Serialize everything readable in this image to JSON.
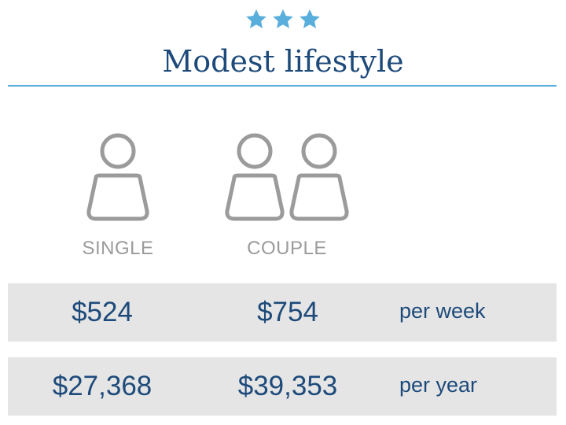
{
  "header": {
    "rating_icon": "star-icon",
    "rating_count": 3,
    "star_color": "#5aaedc",
    "title": "Modest lifestyle"
  },
  "columns": [
    {
      "icon": "single-person-icon",
      "label": "SINGLE"
    },
    {
      "icon": "couple-icon",
      "label": "COUPLE"
    }
  ],
  "rows": [
    {
      "single": "$524",
      "couple": "$754",
      "period": "per week"
    },
    {
      "single": "$27,368",
      "couple": "$39,353",
      "period": "per year"
    }
  ],
  "colors": {
    "text": "#1d4a7a",
    "accent": "#5aaedc",
    "icon": "#9b9b9b",
    "row_bg": "#e5e5e5"
  }
}
